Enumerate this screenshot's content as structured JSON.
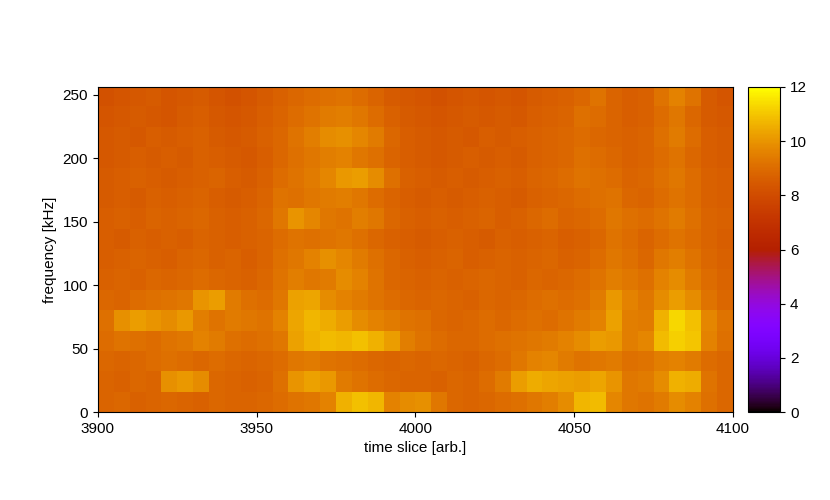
{
  "chart_data": {
    "type": "heatmap",
    "xlabel": "time slice [arb.]",
    "ylabel": "frequency [kHz]",
    "xlim": [
      3900,
      4100
    ],
    "xticks": [
      3900,
      3950,
      4000,
      4050,
      4100
    ],
    "ylim": [
      0,
      256
    ],
    "yticks": [
      0,
      50,
      100,
      150,
      200,
      250
    ],
    "zlim": [
      0,
      12
    ],
    "zticks": [
      0,
      2,
      4,
      6,
      8,
      10,
      12
    ],
    "cells": [
      [
        8.8,
        8.9,
        8.7,
        8.8,
        8.9,
        8.8,
        8.7,
        8.9,
        8.8,
        8.8,
        8.9,
        9.0,
        9.2,
        9.3,
        9.6,
        10.6,
        10.9,
        10.7,
        9.6,
        9.8,
        9.9,
        9.3,
        8.9,
        8.8,
        8.9,
        9.0,
        9.1,
        9.3,
        9.5,
        9.8,
        10.7,
        10.8,
        9.7,
        9.3,
        9.2,
        9.4,
        9.8,
        9.6,
        9.1,
        8.9
      ],
      [
        8.8,
        8.7,
        8.9,
        8.8,
        9.9,
        10.1,
        9.8,
        8.9,
        8.8,
        8.7,
        8.8,
        9.1,
        10.0,
        10.3,
        10.1,
        9.4,
        9.2,
        9.0,
        8.9,
        8.8,
        8.8,
        8.7,
        8.9,
        8.8,
        9.0,
        9.4,
        10.2,
        10.5,
        10.4,
        10.3,
        10.2,
        10.4,
        10.0,
        9.3,
        9.4,
        9.8,
        10.6,
        10.5,
        9.2,
        8.9
      ],
      [
        8.9,
        8.8,
        8.9,
        9.0,
        9.1,
        9.0,
        8.9,
        9.0,
        8.9,
        8.8,
        8.9,
        9.0,
        9.3,
        9.4,
        9.2,
        9.1,
        9.0,
        8.9,
        8.8,
        8.9,
        8.8,
        8.9,
        8.8,
        8.7,
        8.9,
        9.0,
        9.3,
        9.6,
        9.7,
        9.4,
        9.2,
        9.3,
        9.4,
        9.1,
        9.2,
        9.5,
        9.6,
        9.4,
        9.0,
        8.9
      ],
      [
        9.0,
        9.2,
        9.1,
        9.0,
        9.2,
        9.3,
        9.6,
        9.4,
        9.1,
        9.0,
        9.1,
        9.3,
        10.3,
        10.6,
        10.8,
        10.7,
        10.9,
        10.6,
        10.2,
        9.5,
        9.2,
        9.0,
        8.9,
        8.9,
        9.0,
        9.1,
        9.2,
        9.3,
        9.4,
        9.6,
        9.8,
        10.2,
        10.1,
        9.5,
        9.7,
        10.8,
        11.2,
        11.0,
        9.6,
        9.1
      ],
      [
        9.1,
        9.9,
        10.2,
        10.0,
        9.8,
        10.1,
        9.5,
        9.2,
        9.4,
        9.3,
        9.2,
        9.6,
        10.4,
        10.7,
        10.5,
        10.2,
        9.8,
        9.6,
        9.4,
        9.2,
        9.1,
        8.9,
        8.8,
        8.9,
        9.0,
        8.9,
        9.0,
        9.1,
        9.0,
        9.2,
        9.4,
        9.6,
        10.3,
        9.5,
        9.4,
        10.6,
        11.3,
        10.9,
        9.7,
        9.2
      ],
      [
        8.9,
        8.8,
        9.0,
        9.1,
        9.2,
        9.3,
        10.0,
        10.2,
        9.4,
        9.1,
        9.0,
        9.3,
        10.3,
        10.4,
        9.8,
        9.6,
        9.4,
        9.2,
        9.0,
        8.9,
        8.8,
        8.9,
        8.8,
        8.7,
        8.9,
        8.8,
        8.9,
        9.0,
        9.1,
        9.0,
        9.1,
        9.4,
        10.1,
        9.6,
        9.3,
        9.8,
        10.2,
        9.8,
        9.2,
        8.9
      ],
      [
        8.7,
        8.8,
        8.7,
        8.9,
        8.8,
        8.9,
        9.0,
        8.9,
        8.8,
        8.7,
        8.9,
        9.2,
        9.5,
        9.3,
        9.4,
        9.8,
        9.6,
        9.2,
        8.9,
        8.8,
        8.7,
        8.8,
        8.7,
        8.8,
        8.9,
        8.8,
        8.7,
        8.9,
        8.8,
        8.9,
        9.0,
        9.2,
        9.5,
        9.3,
        9.1,
        9.6,
        9.8,
        9.4,
        9.0,
        8.8
      ],
      [
        8.6,
        8.7,
        8.8,
        8.7,
        8.6,
        8.8,
        8.9,
        8.7,
        8.8,
        8.6,
        8.8,
        9.1,
        9.3,
        9.6,
        9.9,
        9.7,
        9.4,
        9.1,
        8.9,
        8.7,
        8.6,
        8.7,
        8.8,
        8.6,
        8.7,
        8.8,
        8.7,
        8.8,
        8.9,
        8.7,
        8.8,
        9.0,
        9.3,
        9.1,
        8.9,
        9.3,
        9.5,
        9.2,
        8.9,
        8.7
      ],
      [
        8.6,
        8.5,
        8.7,
        8.6,
        8.7,
        8.6,
        8.8,
        8.7,
        8.6,
        8.7,
        8.8,
        9.0,
        9.2,
        9.1,
        9.2,
        9.3,
        9.1,
        8.9,
        8.7,
        8.6,
        8.5,
        8.6,
        8.7,
        8.6,
        8.5,
        8.7,
        8.6,
        8.7,
        8.8,
        8.6,
        8.7,
        8.9,
        9.2,
        9.0,
        8.8,
        9.0,
        9.2,
        9.0,
        8.8,
        8.6
      ],
      [
        8.6,
        8.7,
        8.6,
        8.8,
        8.7,
        8.8,
        8.9,
        8.7,
        8.6,
        8.7,
        8.9,
        9.3,
        10.0,
        9.7,
        9.3,
        9.2,
        9.5,
        9.3,
        8.9,
        8.7,
        8.6,
        8.7,
        8.6,
        8.7,
        8.8,
        8.6,
        8.7,
        8.9,
        9.0,
        8.8,
        8.9,
        9.0,
        9.3,
        9.1,
        9.0,
        9.2,
        9.4,
        9.1,
        8.8,
        8.7
      ],
      [
        8.5,
        8.6,
        8.5,
        8.7,
        8.6,
        8.7,
        8.8,
        8.6,
        8.5,
        8.6,
        8.8,
        9.2,
        9.1,
        9.3,
        9.4,
        9.5,
        9.3,
        9.0,
        8.8,
        8.6,
        8.5,
        8.6,
        8.5,
        8.6,
        8.7,
        8.6,
        8.5,
        8.7,
        8.8,
        8.9,
        9.0,
        9.1,
        9.2,
        8.9,
        8.8,
        9.0,
        9.2,
        9.0,
        8.7,
        8.6
      ],
      [
        8.5,
        8.6,
        8.7,
        8.6,
        8.5,
        8.6,
        8.7,
        8.8,
        8.6,
        8.5,
        8.7,
        9.0,
        9.2,
        9.4,
        9.7,
        10.1,
        10.2,
        9.8,
        9.1,
        8.7,
        8.6,
        8.5,
        8.6,
        8.5,
        8.6,
        8.7,
        8.6,
        8.8,
        8.9,
        9.0,
        9.2,
        9.1,
        9.0,
        8.8,
        8.9,
        9.1,
        9.3,
        9.0,
        8.7,
        8.6
      ],
      [
        8.4,
        8.5,
        8.6,
        8.5,
        8.6,
        8.5,
        8.7,
        8.6,
        8.5,
        8.4,
        8.6,
        8.9,
        9.1,
        9.3,
        9.5,
        9.6,
        9.3,
        9.1,
        8.8,
        8.6,
        8.5,
        8.4,
        8.5,
        8.6,
        8.5,
        8.6,
        8.5,
        8.7,
        8.8,
        8.9,
        9.1,
        9.0,
        8.9,
        8.7,
        8.8,
        9.0,
        9.2,
        8.9,
        8.6,
        8.5
      ],
      [
        8.4,
        8.5,
        8.4,
        8.6,
        8.5,
        8.6,
        8.7,
        8.5,
        8.4,
        8.5,
        8.7,
        8.9,
        9.2,
        9.5,
        9.8,
        9.9,
        9.7,
        9.4,
        8.9,
        8.6,
        8.5,
        8.4,
        8.5,
        8.4,
        8.6,
        8.5,
        8.6,
        8.7,
        8.8,
        8.9,
        9.0,
        8.9,
        8.8,
        8.7,
        8.8,
        9.1,
        9.4,
        9.0,
        8.6,
        8.5
      ],
      [
        8.3,
        8.4,
        8.5,
        8.4,
        8.3,
        8.5,
        8.6,
        8.4,
        8.3,
        8.4,
        8.6,
        8.8,
        9.0,
        9.2,
        9.4,
        9.5,
        9.3,
        9.0,
        8.7,
        8.5,
        8.4,
        8.3,
        8.4,
        8.5,
        8.4,
        8.5,
        8.4,
        8.6,
        8.7,
        8.8,
        9.1,
        9.0,
        8.8,
        8.6,
        8.7,
        9.0,
        9.3,
        8.9,
        8.5,
        8.4
      ],
      [
        8.2,
        8.3,
        8.4,
        8.5,
        8.3,
        8.4,
        8.5,
        8.3,
        8.2,
        8.3,
        8.5,
        8.7,
        8.9,
        9.0,
        9.1,
        9.2,
        9.0,
        8.8,
        8.5,
        8.4,
        8.3,
        8.2,
        8.3,
        8.4,
        8.3,
        8.4,
        8.3,
        8.5,
        8.6,
        8.7,
        8.9,
        9.2,
        8.8,
        8.6,
        8.7,
        9.2,
        9.6,
        9.2,
        8.5,
        8.3
      ]
    ]
  }
}
